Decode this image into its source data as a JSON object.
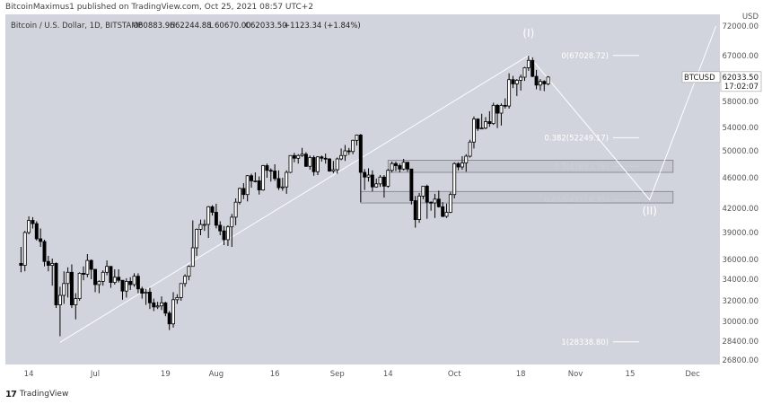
{
  "header": {
    "publisher_line": "BitcoinMaximus1 published on TradingView.com, Oct 25, 2021 08:57 UTC+2"
  },
  "footer": {
    "brand": "TradingView",
    "logo_glyph": "17"
  },
  "colors": {
    "background": "#d1d4dc",
    "candle": "#000000",
    "trend_line": "#ffffff",
    "fib_line": "#ffffff",
    "zone_fill": "#c4c7cf",
    "zone_border": "#7a7d85"
  },
  "chart_data": {
    "type": "candlestick",
    "title": "Bitcoin / U.S. Dollar, 1D, BITSTAMP",
    "ohlc_legend": {
      "o_label": "O",
      "o": "60883.96",
      "h_label": "H",
      "h": "62244.88",
      "l_label": "L",
      "l": "60670.00",
      "c_label": "C",
      "c": "62033.50",
      "change": "+1123.34 (+1.84%)"
    },
    "currency_label": "USD",
    "y_ticks": [
      "72000.00",
      "67000.00",
      "62000.00",
      "58000.00",
      "54000.00",
      "50000.00",
      "46000.00",
      "42000.00",
      "39000.00",
      "36000.00",
      "34000.00",
      "32000.00",
      "30000.00",
      "28400.00",
      "26800.00"
    ],
    "x_ticks": [
      "14",
      "Jul",
      "19",
      "Aug",
      "16",
      "Sep",
      "14",
      "Oct",
      "18",
      "Nov",
      "15",
      "Dec"
    ],
    "price_label": {
      "symbol": "BTCUSD",
      "price": "62033.50",
      "countdown": "17:02:07",
      "value": 62033.5
    },
    "candles": [
      {
        "date": "2021-06-12",
        "o": 35600,
        "h": 37400,
        "l": 34700,
        "c": 35400
      },
      {
        "date": "2021-06-13",
        "o": 35400,
        "h": 39200,
        "l": 34800,
        "c": 39000
      },
      {
        "date": "2021-06-14",
        "o": 39000,
        "h": 41000,
        "l": 38800,
        "c": 40500
      },
      {
        "date": "2021-06-15",
        "o": 40500,
        "h": 40900,
        "l": 39500,
        "c": 40100
      },
      {
        "date": "2021-06-16",
        "o": 40100,
        "h": 40400,
        "l": 38100,
        "c": 38300
      },
      {
        "date": "2021-06-17",
        "o": 38300,
        "h": 39500,
        "l": 37400,
        "c": 38000
      },
      {
        "date": "2021-06-18",
        "o": 38000,
        "h": 38200,
        "l": 35300,
        "c": 35800
      },
      {
        "date": "2021-06-19",
        "o": 35800,
        "h": 36400,
        "l": 34800,
        "c": 35400
      },
      {
        "date": "2021-06-20",
        "o": 35400,
        "h": 36100,
        "l": 33400,
        "c": 35600
      },
      {
        "date": "2021-06-21",
        "o": 35600,
        "h": 35700,
        "l": 31300,
        "c": 31600
      },
      {
        "date": "2021-06-22",
        "o": 31600,
        "h": 33300,
        "l": 28800,
        "c": 32500
      },
      {
        "date": "2021-06-23",
        "o": 32500,
        "h": 34800,
        "l": 31700,
        "c": 33600
      },
      {
        "date": "2021-06-24",
        "o": 33600,
        "h": 35200,
        "l": 32300,
        "c": 34700
      },
      {
        "date": "2021-06-25",
        "o": 34700,
        "h": 35500,
        "l": 31300,
        "c": 31600
      },
      {
        "date": "2021-06-26",
        "o": 31600,
        "h": 32700,
        "l": 30200,
        "c": 32200
      },
      {
        "date": "2021-06-27",
        "o": 32200,
        "h": 34700,
        "l": 32000,
        "c": 34600
      },
      {
        "date": "2021-06-28",
        "o": 34600,
        "h": 35300,
        "l": 33900,
        "c": 34500
      },
      {
        "date": "2021-06-29",
        "o": 34500,
        "h": 36600,
        "l": 34200,
        "c": 35900
      },
      {
        "date": "2021-06-30",
        "o": 35900,
        "h": 36000,
        "l": 34000,
        "c": 35000
      },
      {
        "date": "2021-07-01",
        "o": 35000,
        "h": 35000,
        "l": 32800,
        "c": 33500
      },
      {
        "date": "2021-07-02",
        "o": 33500,
        "h": 33900,
        "l": 32700,
        "c": 33800
      },
      {
        "date": "2021-07-03",
        "o": 33800,
        "h": 34900,
        "l": 33400,
        "c": 34700
      },
      {
        "date": "2021-07-04",
        "o": 34700,
        "h": 35900,
        "l": 34400,
        "c": 35300
      },
      {
        "date": "2021-07-05",
        "o": 35300,
        "h": 35300,
        "l": 33200,
        "c": 33700
      },
      {
        "date": "2021-07-06",
        "o": 33700,
        "h": 35000,
        "l": 33500,
        "c": 34200
      },
      {
        "date": "2021-07-07",
        "o": 34200,
        "h": 35000,
        "l": 33700,
        "c": 33900
      },
      {
        "date": "2021-07-08",
        "o": 33900,
        "h": 33900,
        "l": 32100,
        "c": 32900
      },
      {
        "date": "2021-07-09",
        "o": 32900,
        "h": 34100,
        "l": 32300,
        "c": 33800
      },
      {
        "date": "2021-07-10",
        "o": 33800,
        "h": 34200,
        "l": 33000,
        "c": 33500
      },
      {
        "date": "2021-07-11",
        "o": 33500,
        "h": 34600,
        "l": 33300,
        "c": 34300
      },
      {
        "date": "2021-07-12",
        "o": 34300,
        "h": 34600,
        "l": 32700,
        "c": 33100
      },
      {
        "date": "2021-07-13",
        "o": 33100,
        "h": 33300,
        "l": 32200,
        "c": 32700
      },
      {
        "date": "2021-07-14",
        "o": 32700,
        "h": 33100,
        "l": 31600,
        "c": 32800
      },
      {
        "date": "2021-07-15",
        "o": 32800,
        "h": 33200,
        "l": 31200,
        "c": 31800
      },
      {
        "date": "2021-07-16",
        "o": 31800,
        "h": 32200,
        "l": 31000,
        "c": 31400
      },
      {
        "date": "2021-07-17",
        "o": 31400,
        "h": 31900,
        "l": 31200,
        "c": 31500
      },
      {
        "date": "2021-07-18",
        "o": 31500,
        "h": 32400,
        "l": 31100,
        "c": 31800
      },
      {
        "date": "2021-07-19",
        "o": 31800,
        "h": 31900,
        "l": 30500,
        "c": 30800
      },
      {
        "date": "2021-07-20",
        "o": 30800,
        "h": 31000,
        "l": 29300,
        "c": 29800
      },
      {
        "date": "2021-07-21",
        "o": 29800,
        "h": 32800,
        "l": 29500,
        "c": 32100
      },
      {
        "date": "2021-07-22",
        "o": 32100,
        "h": 32600,
        "l": 31700,
        "c": 32300
      },
      {
        "date": "2021-07-23",
        "o": 32300,
        "h": 33600,
        "l": 32000,
        "c": 33600
      },
      {
        "date": "2021-07-24",
        "o": 33600,
        "h": 34500,
        "l": 33300,
        "c": 34300
      },
      {
        "date": "2021-07-25",
        "o": 34300,
        "h": 35400,
        "l": 33900,
        "c": 35300
      },
      {
        "date": "2021-07-26",
        "o": 35300,
        "h": 40500,
        "l": 35300,
        "c": 37300
      },
      {
        "date": "2021-07-27",
        "o": 37300,
        "h": 39500,
        "l": 36400,
        "c": 39400
      },
      {
        "date": "2021-07-28",
        "o": 39400,
        "h": 40600,
        "l": 38700,
        "c": 40000
      },
      {
        "date": "2021-07-29",
        "o": 40000,
        "h": 40600,
        "l": 39200,
        "c": 40000
      },
      {
        "date": "2021-07-30",
        "o": 40000,
        "h": 42300,
        "l": 38400,
        "c": 42200
      },
      {
        "date": "2021-07-31",
        "o": 42200,
        "h": 42400,
        "l": 41100,
        "c": 41500
      },
      {
        "date": "2021-08-01",
        "o": 41500,
        "h": 42600,
        "l": 39500,
        "c": 39900
      },
      {
        "date": "2021-08-02",
        "o": 39900,
        "h": 40400,
        "l": 38700,
        "c": 39200
      },
      {
        "date": "2021-08-03",
        "o": 39200,
        "h": 39800,
        "l": 37600,
        "c": 38200
      },
      {
        "date": "2021-08-04",
        "o": 38200,
        "h": 39900,
        "l": 37500,
        "c": 39700
      },
      {
        "date": "2021-08-05",
        "o": 39700,
        "h": 41300,
        "l": 37400,
        "c": 40900
      },
      {
        "date": "2021-08-06",
        "o": 40900,
        "h": 43300,
        "l": 39900,
        "c": 42800
      },
      {
        "date": "2021-08-07",
        "o": 42800,
        "h": 44700,
        "l": 42500,
        "c": 44600
      },
      {
        "date": "2021-08-08",
        "o": 44600,
        "h": 45300,
        "l": 43200,
        "c": 43800
      },
      {
        "date": "2021-08-09",
        "o": 43800,
        "h": 46400,
        "l": 42900,
        "c": 46300
      },
      {
        "date": "2021-08-10",
        "o": 46300,
        "h": 46600,
        "l": 44700,
        "c": 45600
      },
      {
        "date": "2021-08-11",
        "o": 45600,
        "h": 46800,
        "l": 45400,
        "c": 45600
      },
      {
        "date": "2021-08-12",
        "o": 45600,
        "h": 46200,
        "l": 43800,
        "c": 44400
      },
      {
        "date": "2021-08-13",
        "o": 44400,
        "h": 47900,
        "l": 44300,
        "c": 47800
      },
      {
        "date": "2021-08-14",
        "o": 47800,
        "h": 48100,
        "l": 46000,
        "c": 47100
      },
      {
        "date": "2021-08-15",
        "o": 47100,
        "h": 47400,
        "l": 45500,
        "c": 47000
      },
      {
        "date": "2021-08-16",
        "o": 47000,
        "h": 48000,
        "l": 45600,
        "c": 45900
      },
      {
        "date": "2021-08-17",
        "o": 45900,
        "h": 47100,
        "l": 44400,
        "c": 44700
      },
      {
        "date": "2021-08-18",
        "o": 44700,
        "h": 46000,
        "l": 44300,
        "c": 44800
      },
      {
        "date": "2021-08-19",
        "o": 44800,
        "h": 47100,
        "l": 43900,
        "c": 46800
      },
      {
        "date": "2021-08-20",
        "o": 46800,
        "h": 49300,
        "l": 46700,
        "c": 49300
      },
      {
        "date": "2021-08-21",
        "o": 49300,
        "h": 49700,
        "l": 48300,
        "c": 48900
      },
      {
        "date": "2021-08-22",
        "o": 48900,
        "h": 49500,
        "l": 48100,
        "c": 49300
      },
      {
        "date": "2021-08-23",
        "o": 49300,
        "h": 50500,
        "l": 49100,
        "c": 49500
      },
      {
        "date": "2021-08-24",
        "o": 49500,
        "h": 49800,
        "l": 47600,
        "c": 47700
      },
      {
        "date": "2021-08-25",
        "o": 47700,
        "h": 49300,
        "l": 47200,
        "c": 49000
      },
      {
        "date": "2021-08-26",
        "o": 49000,
        "h": 49300,
        "l": 46300,
        "c": 46900
      },
      {
        "date": "2021-08-27",
        "o": 46900,
        "h": 49200,
        "l": 46400,
        "c": 49100
      },
      {
        "date": "2021-08-28",
        "o": 49100,
        "h": 49300,
        "l": 48400,
        "c": 48900
      },
      {
        "date": "2021-08-29",
        "o": 48900,
        "h": 49600,
        "l": 48100,
        "c": 48800
      },
      {
        "date": "2021-08-30",
        "o": 48800,
        "h": 48900,
        "l": 46900,
        "c": 47000
      },
      {
        "date": "2021-08-31",
        "o": 47000,
        "h": 48500,
        "l": 46700,
        "c": 47200
      },
      {
        "date": "2021-09-01",
        "o": 47200,
        "h": 49000,
        "l": 46600,
        "c": 48800
      },
      {
        "date": "2021-09-02",
        "o": 48800,
        "h": 50400,
        "l": 48600,
        "c": 49300
      },
      {
        "date": "2021-09-03",
        "o": 49300,
        "h": 51000,
        "l": 48500,
        "c": 50000
      },
      {
        "date": "2021-09-04",
        "o": 50000,
        "h": 50500,
        "l": 49400,
        "c": 49900
      },
      {
        "date": "2021-09-05",
        "o": 49900,
        "h": 51900,
        "l": 49500,
        "c": 51800
      },
      {
        "date": "2021-09-06",
        "o": 51800,
        "h": 52800,
        "l": 50900,
        "c": 52700
      },
      {
        "date": "2021-09-07",
        "o": 52700,
        "h": 52900,
        "l": 42800,
        "c": 46800
      },
      {
        "date": "2021-09-08",
        "o": 46800,
        "h": 47300,
        "l": 44400,
        "c": 46100
      },
      {
        "date": "2021-09-09",
        "o": 46100,
        "h": 47400,
        "l": 45500,
        "c": 46400
      },
      {
        "date": "2021-09-10",
        "o": 46400,
        "h": 47100,
        "l": 44200,
        "c": 44800
      },
      {
        "date": "2021-09-11",
        "o": 44800,
        "h": 45900,
        "l": 44700,
        "c": 45200
      },
      {
        "date": "2021-09-12",
        "o": 45200,
        "h": 46400,
        "l": 44800,
        "c": 46100
      },
      {
        "date": "2021-09-13",
        "o": 46100,
        "h": 46400,
        "l": 43400,
        "c": 44900
      },
      {
        "date": "2021-09-14",
        "o": 44900,
        "h": 47300,
        "l": 44700,
        "c": 47100
      },
      {
        "date": "2021-09-15",
        "o": 47100,
        "h": 48400,
        "l": 46800,
        "c": 48100
      },
      {
        "date": "2021-09-16",
        "o": 48100,
        "h": 48400,
        "l": 47000,
        "c": 47800
      },
      {
        "date": "2021-09-17",
        "o": 47800,
        "h": 48100,
        "l": 46800,
        "c": 47300
      },
      {
        "date": "2021-09-18",
        "o": 47300,
        "h": 48800,
        "l": 47100,
        "c": 48300
      },
      {
        "date": "2021-09-19",
        "o": 48300,
        "h": 48300,
        "l": 46900,
        "c": 47300
      },
      {
        "date": "2021-09-20",
        "o": 47300,
        "h": 47300,
        "l": 42500,
        "c": 43000
      },
      {
        "date": "2021-09-21",
        "o": 43000,
        "h": 43600,
        "l": 39600,
        "c": 40600
      },
      {
        "date": "2021-09-22",
        "o": 40600,
        "h": 44000,
        "l": 40200,
        "c": 43600
      },
      {
        "date": "2021-09-23",
        "o": 43600,
        "h": 44900,
        "l": 43200,
        "c": 44900
      },
      {
        "date": "2021-09-24",
        "o": 44900,
        "h": 45100,
        "l": 40700,
        "c": 42800
      },
      {
        "date": "2021-09-25",
        "o": 42800,
        "h": 42900,
        "l": 41700,
        "c": 42700
      },
      {
        "date": "2021-09-26",
        "o": 42700,
        "h": 43900,
        "l": 40800,
        "c": 43200
      },
      {
        "date": "2021-09-27",
        "o": 43200,
        "h": 44300,
        "l": 42100,
        "c": 42200
      },
      {
        "date": "2021-09-28",
        "o": 42200,
        "h": 42800,
        "l": 40900,
        "c": 41000
      },
      {
        "date": "2021-09-29",
        "o": 41000,
        "h": 42600,
        "l": 40800,
        "c": 41500
      },
      {
        "date": "2021-09-30",
        "o": 41500,
        "h": 44100,
        "l": 41400,
        "c": 43800
      },
      {
        "date": "2021-10-01",
        "o": 43800,
        "h": 48300,
        "l": 43300,
        "c": 48100
      },
      {
        "date": "2021-10-02",
        "o": 48100,
        "h": 48300,
        "l": 47100,
        "c": 47600
      },
      {
        "date": "2021-10-03",
        "o": 47600,
        "h": 49200,
        "l": 47200,
        "c": 48200
      },
      {
        "date": "2021-10-04",
        "o": 48200,
        "h": 49500,
        "l": 46900,
        "c": 49200
      },
      {
        "date": "2021-10-05",
        "o": 49200,
        "h": 51900,
        "l": 49000,
        "c": 51500
      },
      {
        "date": "2021-10-06",
        "o": 51500,
        "h": 55700,
        "l": 50400,
        "c": 55300
      },
      {
        "date": "2021-10-07",
        "o": 55300,
        "h": 55400,
        "l": 53400,
        "c": 53800
      },
      {
        "date": "2021-10-08",
        "o": 53800,
        "h": 56100,
        "l": 53700,
        "c": 53900
      },
      {
        "date": "2021-10-09",
        "o": 53900,
        "h": 55600,
        "l": 53700,
        "c": 54900
      },
      {
        "date": "2021-10-10",
        "o": 54900,
        "h": 56500,
        "l": 54100,
        "c": 54600
      },
      {
        "date": "2021-10-11",
        "o": 54600,
        "h": 57800,
        "l": 54400,
        "c": 57400
      },
      {
        "date": "2021-10-12",
        "o": 57400,
        "h": 57600,
        "l": 53900,
        "c": 56200
      },
      {
        "date": "2021-10-13",
        "o": 56200,
        "h": 57700,
        "l": 54300,
        "c": 57400
      },
      {
        "date": "2021-10-14",
        "o": 57400,
        "h": 58500,
        "l": 56900,
        "c": 57300
      },
      {
        "date": "2021-10-15",
        "o": 57300,
        "h": 62900,
        "l": 56900,
        "c": 61600
      },
      {
        "date": "2021-10-16",
        "o": 61600,
        "h": 62300,
        "l": 60200,
        "c": 60900
      },
      {
        "date": "2021-10-17",
        "o": 60900,
        "h": 61700,
        "l": 58900,
        "c": 61500
      },
      {
        "date": "2021-10-18",
        "o": 61500,
        "h": 62600,
        "l": 59800,
        "c": 62000
      },
      {
        "date": "2021-10-19",
        "o": 62000,
        "h": 64400,
        "l": 61400,
        "c": 64200
      },
      {
        "date": "2021-10-20",
        "o": 64200,
        "h": 67000,
        "l": 63500,
        "c": 65900
      },
      {
        "date": "2021-10-21",
        "o": 65900,
        "h": 66600,
        "l": 62000,
        "c": 62200
      },
      {
        "date": "2021-10-22",
        "o": 62200,
        "h": 63700,
        "l": 60000,
        "c": 60700
      },
      {
        "date": "2021-10-23",
        "o": 60700,
        "h": 61700,
        "l": 59800,
        "c": 61300
      },
      {
        "date": "2021-10-24",
        "o": 61300,
        "h": 61500,
        "l": 59700,
        "c": 60900
      },
      {
        "date": "2021-10-25",
        "o": 60884,
        "h": 62245,
        "l": 60670,
        "c": 62034
      }
    ],
    "fib_levels": [
      {
        "label": "0(67028.72)",
        "value": 67028.72
      },
      {
        "label": "0.382(52249.17)",
        "value": 52249.17
      },
      {
        "label": "0.5(47683.76)",
        "value": 47683.76
      },
      {
        "label": "0.618(43118.35)",
        "value": 43118.35
      },
      {
        "label": "1(28338.80)",
        "value": 28338.8
      }
    ],
    "zones": [
      {
        "from_date": "2021-09-14",
        "to_date": "2021-11-26",
        "from": 46800,
        "to": 48600
      },
      {
        "from_date": "2021-09-07",
        "to_date": "2021-11-26",
        "from": 42700,
        "to": 44200
      }
    ],
    "trend_path": [
      {
        "date": "2021-06-22",
        "value": 28300
      },
      {
        "date": "2021-10-20",
        "value": 67028.72
      }
    ],
    "projection_path": [
      {
        "date": "2021-10-20",
        "value": 67028.72
      },
      {
        "date": "2021-11-20",
        "value": 43118.35
      },
      {
        "date": "2021-12-07",
        "value": 72000
      }
    ],
    "wave_labels": [
      {
        "text": "(I)",
        "date": "2021-10-20",
        "value": 70200
      },
      {
        "text": "(II)",
        "date": "2021-11-20",
        "value": 41200
      }
    ]
  }
}
